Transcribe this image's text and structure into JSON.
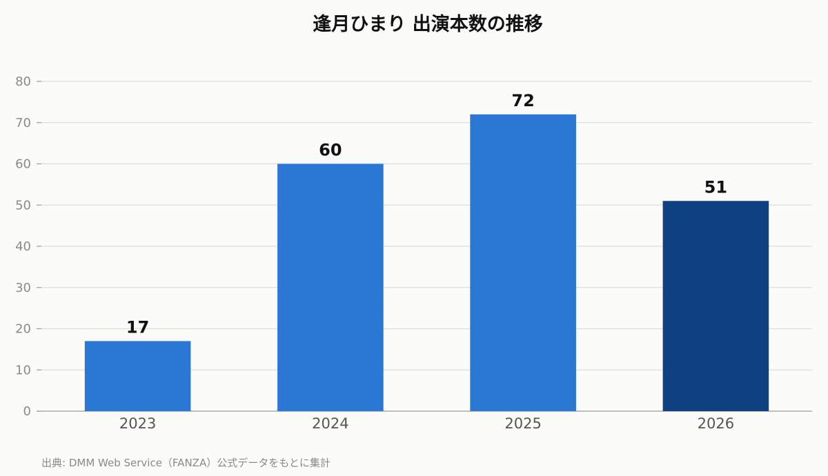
{
  "chart_data": {
    "type": "bar",
    "title": "逢月ひまり 出演本数の推移",
    "categories": [
      "2023",
      "2024",
      "2025",
      "2026"
    ],
    "values": [
      17,
      60,
      72,
      51
    ],
    "data_labels": [
      "17",
      "60",
      "72",
      "51"
    ],
    "bar_colors": [
      "#2a78d4",
      "#2a78d4",
      "#2a78d4",
      "#0f4182"
    ],
    "ylim": [
      0,
      80
    ],
    "yticks": [
      0,
      10,
      20,
      30,
      40,
      50,
      60,
      70,
      80
    ],
    "xlabel": "",
    "ylabel": "",
    "grid": true,
    "legend": "none"
  },
  "source_note": "出典: DMM Web Service（FANZA）公式データをもとに集計",
  "colors": {
    "background": "#fbfbf9",
    "grid": "#dcdcdc",
    "bar": "#2a78d4",
    "bar_highlight": "#0f4182"
  }
}
